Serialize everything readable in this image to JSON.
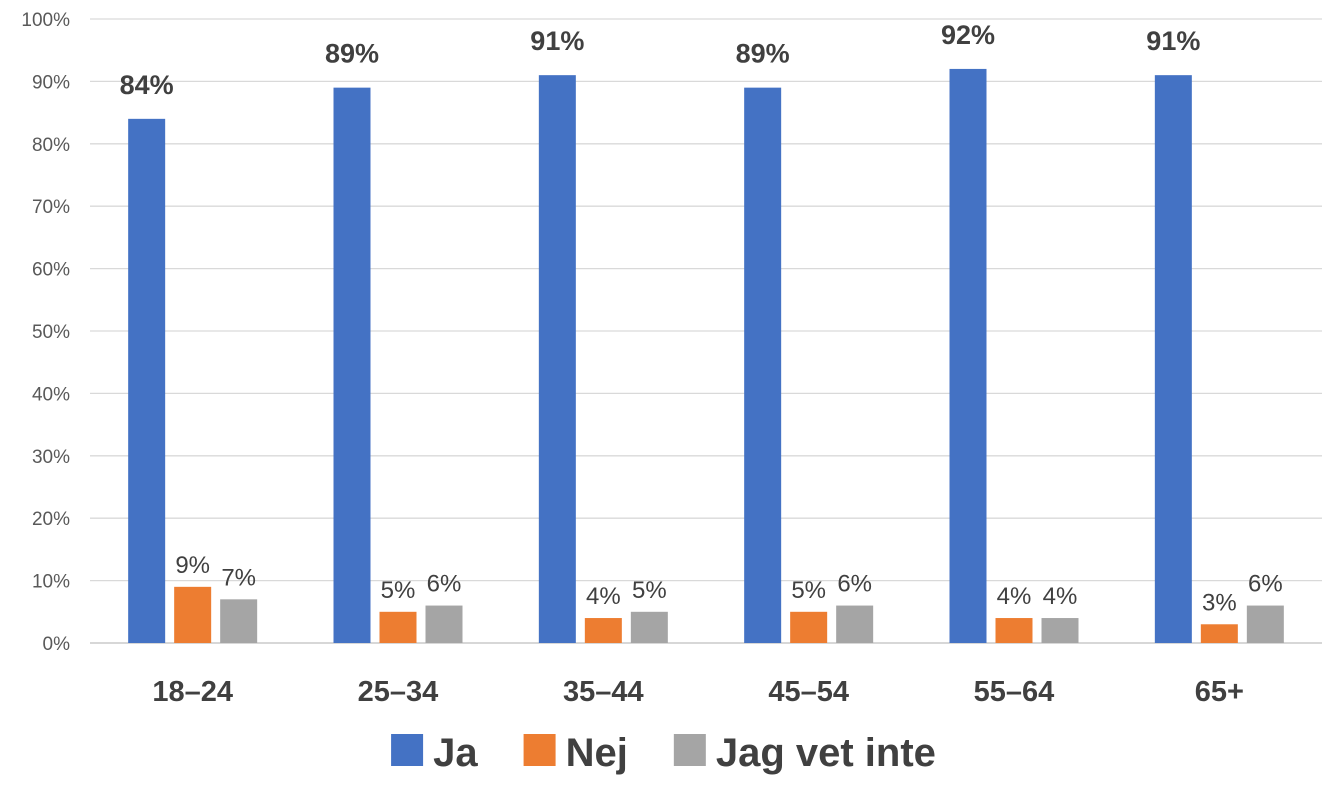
{
  "chart_data": {
    "type": "bar",
    "title": "",
    "xlabel": "",
    "ylabel": "",
    "categories": [
      "18–24",
      "25–34",
      "35–44",
      "45–54",
      "55–64",
      "65+"
    ],
    "series": [
      {
        "name": "Ja",
        "color": "#4472C4",
        "values": [
          84,
          89,
          91,
          89,
          92,
          91
        ],
        "data_labels": [
          "84%",
          "89%",
          "91%",
          "89%",
          "92%",
          "91%"
        ],
        "labels_bold": true
      },
      {
        "name": "Nej",
        "color": "#ED7D31",
        "values": [
          9,
          5,
          4,
          5,
          4,
          3
        ],
        "data_labels": [
          "9%",
          "5%",
          "4%",
          "5%",
          "4%",
          "3%"
        ],
        "labels_bold": false
      },
      {
        "name": "Jag vet inte",
        "color": "#A5A5A5",
        "values": [
          7,
          6,
          5,
          6,
          4,
          6
        ],
        "data_labels": [
          "7%",
          "6%",
          "5%",
          "6%",
          "4%",
          "6%"
        ],
        "labels_bold": false
      }
    ],
    "ylim": [
      0,
      100
    ],
    "y_ticks": [
      0,
      10,
      20,
      30,
      40,
      50,
      60,
      70,
      80,
      90,
      100
    ],
    "y_tick_labels": [
      "0%",
      "10%",
      "20%",
      "30%",
      "40%",
      "50%",
      "60%",
      "70%",
      "80%",
      "90%",
      "100%"
    ],
    "grid": true,
    "legend_position": "bottom"
  }
}
